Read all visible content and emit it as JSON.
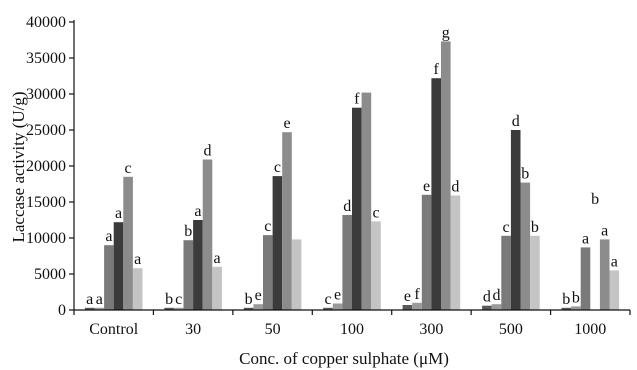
{
  "chart_data": {
    "type": "bar",
    "xlabel": "Conc. of copper sulphate (μM)",
    "ylabel": "Laccase activity (U/g)",
    "ylim": [
      0,
      40000
    ],
    "yticks": [
      "0",
      "5000",
      "10000",
      "15000",
      "20000",
      "25000",
      "30000",
      "35000",
      "40000"
    ],
    "categories": [
      "Control",
      "30",
      "50",
      "100",
      "300",
      "500",
      "1000"
    ],
    "grid": false,
    "legend": "none",
    "colors": [
      "#595959",
      "#9a9a9a",
      "#7a7a7a",
      "#3b3b3b",
      "#8c8c8c",
      "#c4c4c4"
    ],
    "series": [
      {
        "values": [
          300,
          300,
          300,
          300,
          700,
          600,
          300
        ]
      },
      {
        "values": [
          300,
          300,
          800,
          900,
          1000,
          800,
          500
        ]
      },
      {
        "values": [
          9000,
          9700,
          10400,
          13200,
          16000,
          10300,
          8700
        ]
      },
      {
        "values": [
          12200,
          12500,
          18600,
          28100,
          32200,
          25000,
          0
        ]
      },
      {
        "values": [
          18500,
          20900,
          24700,
          30200,
          37300,
          17700,
          9800
        ]
      },
      {
        "values": [
          5800,
          6000,
          9800,
          12300,
          15900,
          10300,
          5500
        ]
      }
    ],
    "letters": [
      [
        "a",
        "a",
        "a",
        "a",
        "c",
        "a"
      ],
      [
        "b",
        "c",
        "b",
        "a",
        "d",
        "a"
      ],
      [
        "b",
        "e",
        "c",
        "c",
        "e",
        ""
      ],
      [
        "c",
        "e",
        "d",
        "f",
        "",
        "c"
      ],
      [
        "e",
        "f",
        "e",
        "f",
        "g",
        "d"
      ],
      [
        "d",
        "d",
        "c",
        "d",
        "b",
        "b"
      ],
      [
        "b",
        "b",
        "a",
        "b",
        "a",
        "a"
      ]
    ]
  }
}
